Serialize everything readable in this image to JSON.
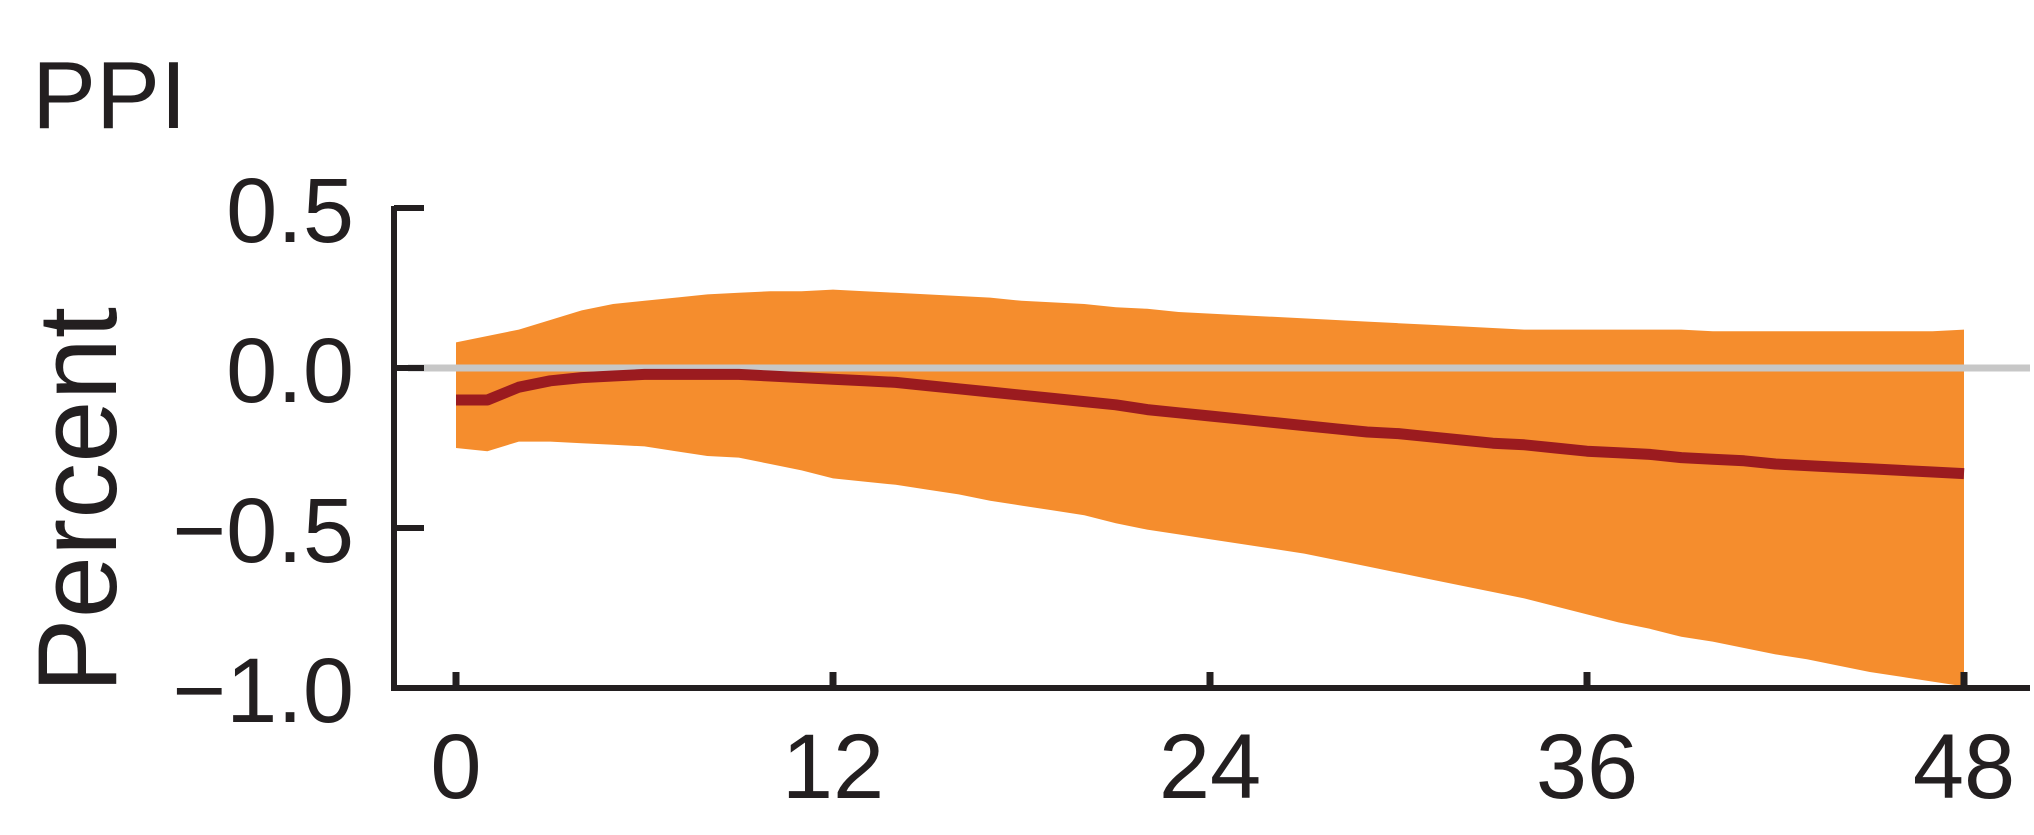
{
  "chart_data": {
    "type": "area",
    "title": "PPI",
    "xlabel": "",
    "ylabel": "Percent",
    "xlim": [
      0,
      48
    ],
    "ylim": [
      -1.0,
      0.5
    ],
    "x_ticks": [
      0,
      12,
      24,
      36,
      48
    ],
    "x_tick_labels": [
      "0",
      "12",
      "24",
      "36",
      "48"
    ],
    "y_ticks": [
      0.5,
      0.0,
      -0.5,
      -1.0
    ],
    "y_tick_labels": [
      "0.5",
      "0.0",
      "−0.5",
      "−1.0"
    ],
    "grid": false,
    "legend": "none",
    "zero_line": 0.0,
    "x": [
      0,
      1,
      2,
      3,
      4,
      5,
      6,
      7,
      8,
      9,
      10,
      11,
      12,
      13,
      14,
      15,
      16,
      17,
      18,
      19,
      20,
      21,
      22,
      23,
      24,
      25,
      26,
      27,
      28,
      29,
      30,
      31,
      32,
      33,
      34,
      35,
      36,
      37,
      38,
      39,
      40,
      41,
      42,
      43,
      44,
      45,
      46,
      47,
      48
    ],
    "series": [
      {
        "values": [
          -0.1,
          -0.1,
          -0.06,
          -0.04,
          -0.03,
          -0.025,
          -0.02,
          -0.02,
          -0.02,
          -0.02,
          -0.025,
          -0.03,
          -0.035,
          -0.04,
          -0.045,
          -0.055,
          -0.065,
          -0.075,
          -0.085,
          -0.095,
          -0.105,
          -0.115,
          -0.13,
          -0.14,
          -0.15,
          -0.16,
          -0.17,
          -0.18,
          -0.19,
          -0.2,
          -0.205,
          -0.215,
          -0.225,
          -0.235,
          -0.24,
          -0.25,
          -0.26,
          -0.265,
          -0.27,
          -0.28,
          -0.285,
          -0.29,
          -0.3,
          -0.305,
          -0.31,
          -0.315,
          -0.32,
          -0.325,
          -0.33
        ],
        "lower": [
          -0.25,
          -0.26,
          -0.23,
          -0.23,
          -0.235,
          -0.24,
          -0.245,
          -0.26,
          -0.275,
          -0.28,
          -0.3,
          -0.32,
          -0.345,
          -0.355,
          -0.365,
          -0.38,
          -0.395,
          -0.415,
          -0.43,
          -0.445,
          -0.46,
          -0.485,
          -0.505,
          -0.52,
          -0.535,
          -0.55,
          -0.565,
          -0.58,
          -0.6,
          -0.62,
          -0.64,
          -0.66,
          -0.68,
          -0.7,
          -0.72,
          -0.745,
          -0.77,
          -0.795,
          -0.815,
          -0.84,
          -0.855,
          -0.875,
          -0.895,
          -0.91,
          -0.93,
          -0.95,
          -0.965,
          -0.98,
          -0.995
        ],
        "upper": [
          0.08,
          0.1,
          0.12,
          0.15,
          0.18,
          0.2,
          0.21,
          0.22,
          0.23,
          0.235,
          0.24,
          0.24,
          0.245,
          0.24,
          0.235,
          0.23,
          0.225,
          0.22,
          0.21,
          0.205,
          0.2,
          0.19,
          0.185,
          0.175,
          0.17,
          0.165,
          0.16,
          0.155,
          0.15,
          0.145,
          0.14,
          0.135,
          0.13,
          0.125,
          0.12,
          0.12,
          0.12,
          0.12,
          0.12,
          0.12,
          0.115,
          0.115,
          0.115,
          0.115,
          0.115,
          0.115,
          0.115,
          0.115,
          0.12
        ]
      }
    ],
    "colors": {
      "band": "#f58d2d",
      "line": "#9b1b1f",
      "zero": "#c7c7c7",
      "axis": "#231f20",
      "text": "#231f20"
    }
  }
}
